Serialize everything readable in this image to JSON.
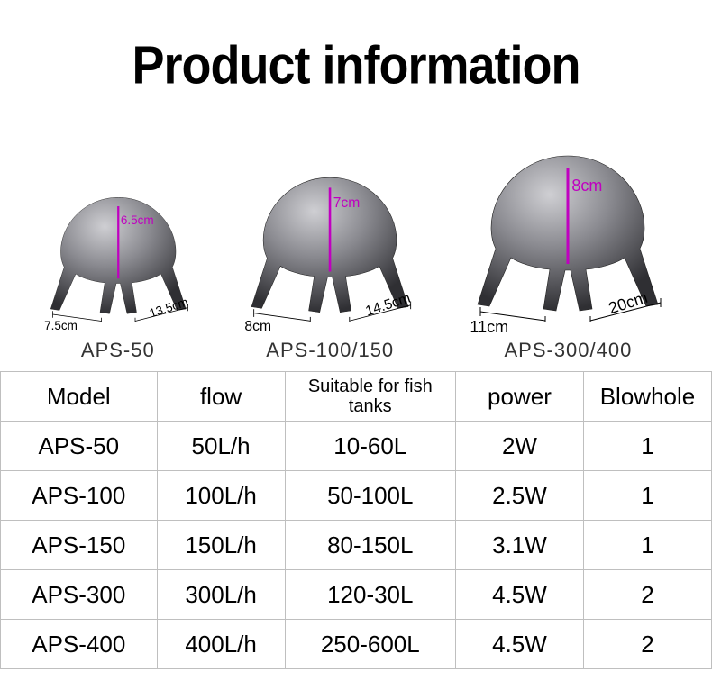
{
  "title": "Product information",
  "products": [
    {
      "name": "APS-50",
      "width": "7.5cm",
      "depth": "13.5cm",
      "height": "6.5cm",
      "scale": 0.75
    },
    {
      "name": "APS-100/150",
      "width": "8cm",
      "depth": "14.5cm",
      "height": "7cm",
      "scale": 0.87
    },
    {
      "name": "APS-300/400",
      "width": "11cm",
      "depth": "20cm",
      "height": "8cm",
      "scale": 1.0
    }
  ],
  "table": {
    "headers": {
      "model": "Model",
      "flow": "flow",
      "suitable": "Suitable for fish tanks",
      "power": "power",
      "blowhole": "Blowhole"
    },
    "rows": [
      {
        "model": "APS-50",
        "flow": "50L/h",
        "suitable": "10-60L",
        "power": "2W",
        "blowhole": "1"
      },
      {
        "model": "APS-100",
        "flow": "100L/h",
        "suitable": "50-100L",
        "power": "2.5W",
        "blowhole": "1"
      },
      {
        "model": "APS-150",
        "flow": "150L/h",
        "suitable": "80-150L",
        "power": "3.1W",
        "blowhole": "1"
      },
      {
        "model": "APS-300",
        "flow": "300L/h",
        "suitable": "120-30L",
        "power": "4.5W",
        "blowhole": "2"
      },
      {
        "model": "APS-400",
        "flow": "400L/h",
        "suitable": "250-600L",
        "power": "4.5W",
        "blowhole": "2"
      }
    ]
  },
  "colors": {
    "text": "#000000",
    "border": "#bfbfbf",
    "height_dim": "#c000c0",
    "pump_light": "#b8b8bc",
    "pump_dark": "#3a3a3e"
  }
}
